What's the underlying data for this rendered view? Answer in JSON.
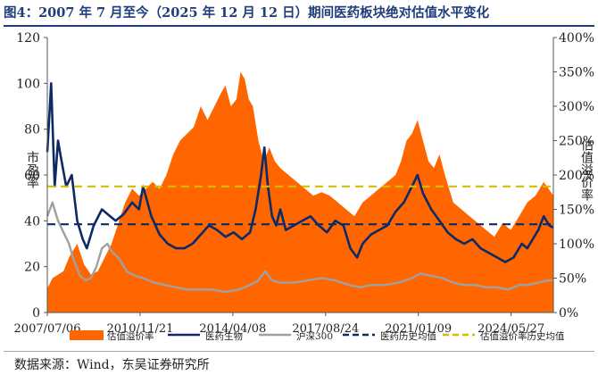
{
  "title": "图4：2007 年 7 月至今（2025 年 12 月 12 日）期间医药板块绝对估值水平变化",
  "source": "数据来源：Wind，东吴证券研究所",
  "chart_data": {
    "type": "line",
    "ylabel_left": "市盈率",
    "ylabel_right": "估值溢价率",
    "ylim_left": [
      0,
      120
    ],
    "ylim_right": [
      0,
      400
    ],
    "yticks_left": [
      "0",
      "20",
      "40",
      "60",
      "80",
      "100",
      "120"
    ],
    "yticks_right": [
      "0%",
      "50%",
      "100%",
      "150%",
      "200%",
      "250%",
      "300%",
      "350%",
      "400%"
    ],
    "xticks": [
      "2007/07/06",
      "2010/11/21",
      "2014/04/08",
      "2017/08/24",
      "2021/01/09",
      "2024/05/27"
    ],
    "x_start": 2007.51,
    "x_end": 2025.95,
    "colors": {
      "premium": "#ff6600",
      "pharma": "#0d2a66",
      "hs300": "#a0a0a0",
      "pharma_avg": "#0d2a66",
      "premium_avg": "#d4bc00"
    },
    "legend": [
      "估值溢价率",
      "医药生物",
      "沪深300",
      "医药历史均值",
      "估值溢价率历史均值"
    ],
    "reference_lines": [
      {
        "name": "医药历史均值",
        "value": 38.5,
        "axis": "left",
        "style": "dashed"
      },
      {
        "name": "估值溢价率历史均值",
        "value": 55,
        "axis": "left",
        "style": "dashed"
      }
    ],
    "series": [
      {
        "name": "估值溢价率",
        "type": "area",
        "axis": "right",
        "x": [
          2007.51,
          2007.7,
          2007.9,
          2008.1,
          2008.3,
          2008.6,
          2008.85,
          2009.1,
          2009.35,
          2009.6,
          2009.85,
          2010.1,
          2010.35,
          2010.6,
          2010.85,
          2011.1,
          2011.35,
          2011.6,
          2011.85,
          2012.1,
          2012.35,
          2012.6,
          2012.85,
          2013.1,
          2013.35,
          2013.6,
          2013.85,
          2014.0,
          2014.2,
          2014.4,
          2014.55,
          2014.7,
          2014.85,
          2015.0,
          2015.2,
          2015.4,
          2015.6,
          2015.8,
          2016.0,
          2016.3,
          2016.6,
          2016.9,
          2017.2,
          2017.5,
          2017.8,
          2018.1,
          2018.4,
          2018.7,
          2019.0,
          2019.3,
          2019.6,
          2019.9,
          2020.2,
          2020.4,
          2020.6,
          2020.8,
          2021.0,
          2021.2,
          2021.4,
          2021.6,
          2021.8,
          2022.0,
          2022.3,
          2022.6,
          2022.9,
          2023.2,
          2023.5,
          2023.8,
          2024.1,
          2024.4,
          2024.7,
          2025.0,
          2025.3,
          2025.6,
          2025.95
        ],
        "values": [
          35,
          50,
          55,
          60,
          80,
          100,
          70,
          55,
          60,
          80,
          100,
          130,
          160,
          180,
          170,
          180,
          190,
          180,
          200,
          230,
          250,
          260,
          270,
          300,
          280,
          300,
          320,
          330,
          300,
          310,
          350,
          340,
          310,
          300,
          250,
          220,
          240,
          220,
          210,
          200,
          190,
          180,
          170,
          175,
          170,
          160,
          150,
          140,
          160,
          170,
          180,
          190,
          200,
          220,
          250,
          260,
          280,
          250,
          220,
          210,
          230,
          200,
          160,
          150,
          140,
          130,
          120,
          110,
          130,
          120,
          140,
          160,
          170,
          190,
          170
        ]
      },
      {
        "name": "医药生物",
        "type": "line",
        "axis": "left",
        "x": [
          2007.51,
          2007.65,
          2007.78,
          2007.9,
          2008.0,
          2008.2,
          2008.4,
          2008.6,
          2008.8,
          2008.95,
          2009.2,
          2009.5,
          2009.8,
          2010.0,
          2010.3,
          2010.6,
          2010.85,
          2011.0,
          2011.3,
          2011.6,
          2011.9,
          2012.2,
          2012.5,
          2012.8,
          2013.1,
          2013.4,
          2013.7,
          2014.0,
          2014.3,
          2014.6,
          2014.9,
          2015.1,
          2015.3,
          2015.42,
          2015.55,
          2015.7,
          2015.85,
          2016.0,
          2016.2,
          2016.5,
          2016.8,
          2017.1,
          2017.4,
          2017.7,
          2018.0,
          2018.3,
          2018.55,
          2018.8,
          2019.0,
          2019.3,
          2019.6,
          2019.9,
          2020.2,
          2020.5,
          2020.8,
          2021.0,
          2021.2,
          2021.5,
          2021.8,
          2022.1,
          2022.4,
          2022.7,
          2023.0,
          2023.3,
          2023.6,
          2023.9,
          2024.2,
          2024.5,
          2024.8,
          2025.0,
          2025.2,
          2025.4,
          2025.6,
          2025.8,
          2025.95
        ],
        "values": [
          70,
          100,
          55,
          75,
          68,
          55,
          60,
          40,
          32,
          28,
          38,
          45,
          42,
          40,
          43,
          48,
          45,
          55,
          42,
          34,
          30,
          28,
          28,
          30,
          34,
          38,
          36,
          33,
          35,
          32,
          35,
          45,
          60,
          72,
          55,
          42,
          38,
          45,
          36,
          38,
          40,
          42,
          38,
          35,
          40,
          38,
          28,
          24,
          30,
          34,
          36,
          38,
          44,
          48,
          55,
          60,
          52,
          45,
          40,
          35,
          32,
          30,
          32,
          28,
          26,
          24,
          22,
          24,
          30,
          28,
          32,
          36,
          42,
          38,
          37
        ]
      },
      {
        "name": "沪深300",
        "type": "line",
        "axis": "left",
        "x": [
          2007.51,
          2007.7,
          2007.9,
          2008.1,
          2008.3,
          2008.5,
          2008.7,
          2008.9,
          2009.1,
          2009.3,
          2009.5,
          2009.7,
          2009.9,
          2010.1,
          2010.4,
          2010.7,
          2011.0,
          2011.4,
          2011.8,
          2012.2,
          2012.6,
          2013.0,
          2013.5,
          2014.0,
          2014.5,
          2014.9,
          2015.2,
          2015.45,
          2015.7,
          2016.0,
          2016.5,
          2017.0,
          2017.5,
          2018.0,
          2018.5,
          2018.9,
          2019.3,
          2019.8,
          2020.3,
          2020.8,
          2021.1,
          2021.5,
          2021.9,
          2022.3,
          2022.7,
          2023.1,
          2023.5,
          2023.9,
          2024.3,
          2024.7,
          2025.0,
          2025.4,
          2025.7,
          2025.95
        ],
        "values": [
          42,
          48,
          40,
          35,
          30,
          22,
          16,
          14,
          15,
          20,
          28,
          30,
          26,
          24,
          18,
          16,
          15,
          13,
          12,
          11,
          10,
          10,
          10,
          9,
          10,
          12,
          14,
          18,
          14,
          13,
          13,
          14,
          15,
          14,
          12,
          11,
          12,
          12,
          13,
          15,
          17,
          16,
          15,
          13,
          12,
          12,
          11,
          11,
          10,
          12,
          12,
          13,
          14,
          14
        ]
      }
    ]
  }
}
